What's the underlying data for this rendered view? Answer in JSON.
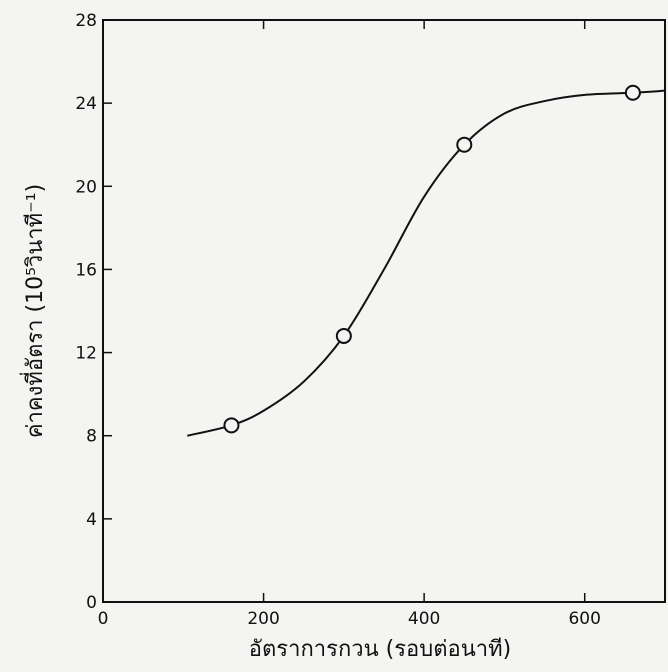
{
  "chart_data": {
    "type": "scatter",
    "x_label": "อัตราการกวน (รอบต่อนาที)",
    "y_label": "ค่าคงที่อัตรา (10⁵วินาที⁻¹)",
    "xlim": [
      0,
      700
    ],
    "ylim": [
      0,
      28
    ],
    "xticks": [
      0,
      200,
      400,
      600
    ],
    "yticks": [
      0,
      4,
      8,
      12,
      16,
      20,
      24,
      28
    ],
    "series": [
      {
        "style": "marker",
        "color": "#111111",
        "x": [
          160,
          300,
          450,
          660
        ],
        "values": [
          8.5,
          12.8,
          22.0,
          24.5
        ]
      },
      {
        "style": "line",
        "color": "#111111",
        "x": [
          105,
          160,
          200,
          250,
          300,
          350,
          400,
          450,
          500,
          550,
          600,
          660,
          700
        ],
        "values": [
          8.0,
          8.5,
          9.2,
          10.6,
          12.8,
          16.0,
          19.5,
          22.0,
          23.5,
          24.1,
          24.4,
          24.5,
          24.6
        ]
      }
    ]
  }
}
